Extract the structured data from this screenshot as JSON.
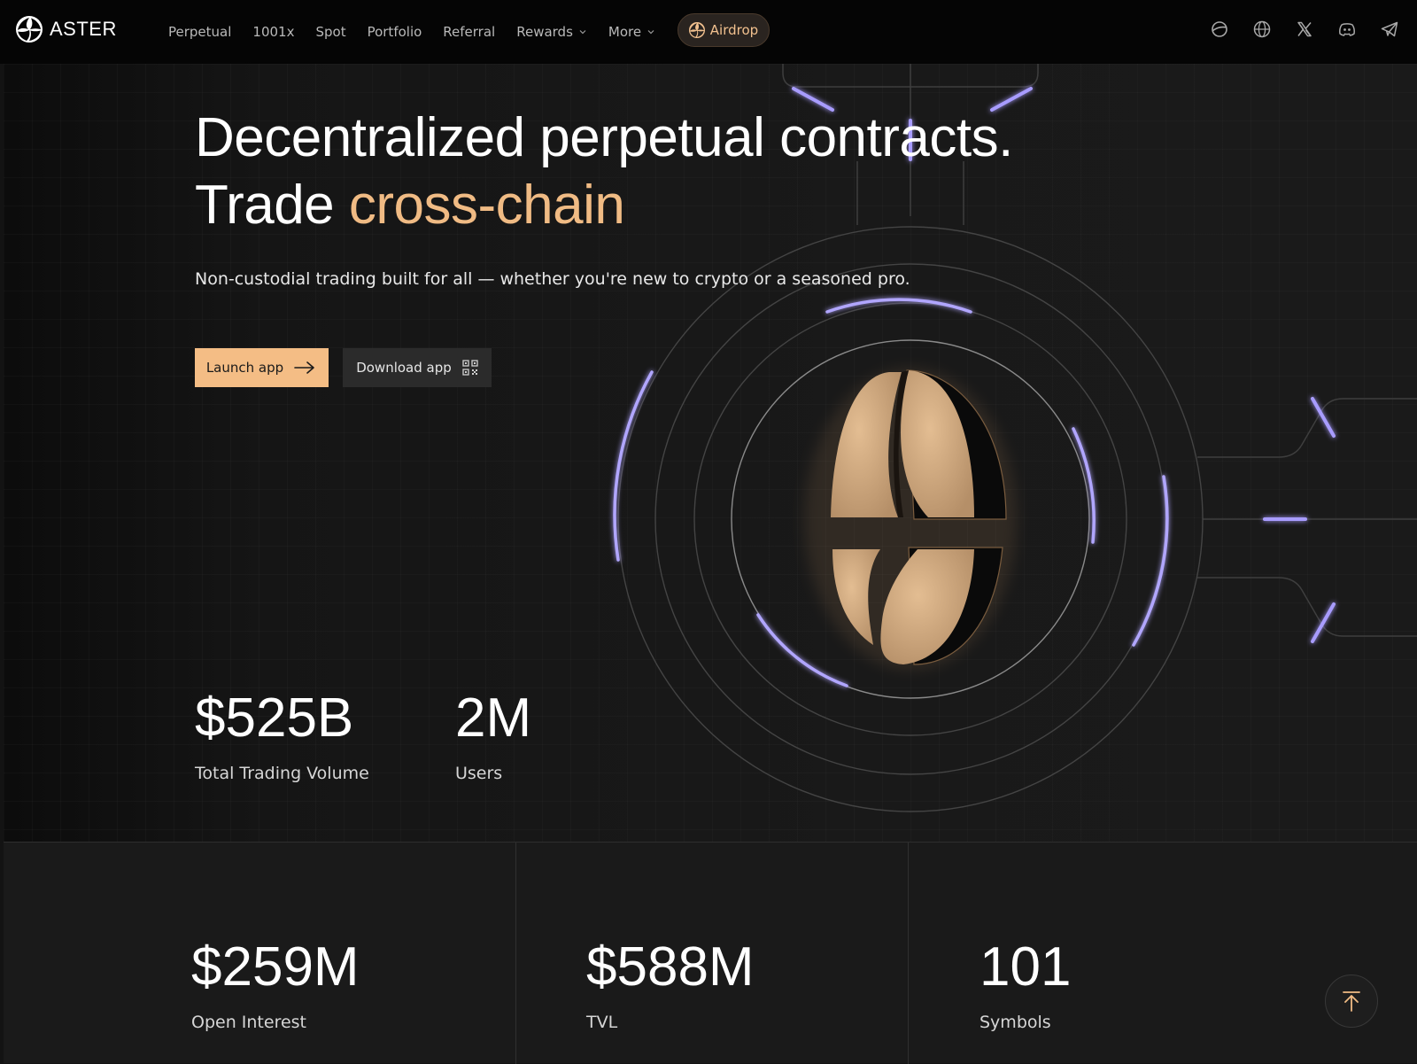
{
  "brand": {
    "name": "ASTER"
  },
  "nav": {
    "items": [
      {
        "label": "Perpetual",
        "dropdown": false
      },
      {
        "label": "1001x",
        "dropdown": false
      },
      {
        "label": "Spot",
        "dropdown": false
      },
      {
        "label": "Portfolio",
        "dropdown": false
      },
      {
        "label": "Referral",
        "dropdown": false
      },
      {
        "label": "Rewards",
        "dropdown": true
      },
      {
        "label": "More",
        "dropdown": true
      }
    ],
    "airdrop_label": "Airdrop",
    "social_icons": [
      "planet-icon",
      "globe-icon",
      "x-icon",
      "discord-icon",
      "telegram-icon"
    ]
  },
  "hero": {
    "headline_line1": "Decentralized perpetual contracts.",
    "headline_line2_prefix": "Trade ",
    "headline_line2_accent": "cross-chain",
    "subline": "Non-custodial trading built for all — whether you're new to crypto or a seasoned pro.",
    "launch_label": "Launch app",
    "download_label": "Download app"
  },
  "stats": [
    {
      "value": "$525B",
      "label": "Total Trading Volume"
    },
    {
      "value": "2M",
      "label": "Users"
    }
  ],
  "lower_stats": [
    {
      "value": "$259M",
      "label": "Open Interest"
    },
    {
      "value": "$588M",
      "label": "TVL"
    },
    {
      "value": "101",
      "label": "Symbols"
    }
  ],
  "colors": {
    "accent": "#f4bd85",
    "accent_text": "#f0bb84",
    "glow": "#a89cff",
    "background": "#131313"
  }
}
